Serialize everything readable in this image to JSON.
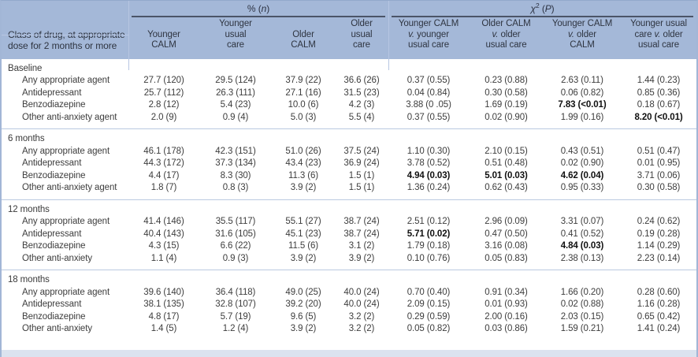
{
  "table": {
    "stub_header": "Class of drug, at appropriate\ndose for 2 months or more",
    "group1": {
      "pre": "% (",
      "var": "n",
      "post": ")"
    },
    "group2": {
      "pre": "χ",
      "sup": "2",
      "mid": " (",
      "var": "P",
      "post": ")"
    },
    "columns": [
      "Younger\nCALM",
      "Younger\nusual\ncare",
      "Older\nCALM",
      "Older\nusual\ncare",
      "Younger CALM\nv. younger\nusual care",
      "Older CALM\nv. older\nusual care",
      "Younger CALM\nv. older\nCALM",
      "Younger usual\ncare v. older\nusual care"
    ],
    "bold_convention": "values wrapped in ** are shown bold (statistically significant)",
    "sections": [
      {
        "label": "Baseline",
        "rows": [
          {
            "drug": "Any appropriate agent",
            "values": [
              "27.7 (120)",
              "29.5 (124)",
              "37.9 (22)",
              "36.6 (26)",
              "0.37 (0.55)",
              "0.23 (0.88)",
              "2.63 (0.11)",
              "1.44 (0.23)"
            ]
          },
          {
            "drug": "Antidepressant",
            "values": [
              "25.7 (112)",
              "26.3 (111)",
              "27.1 (16)",
              "31.5 (23)",
              "0.04 (0.84)",
              "0.30 (0.58)",
              "0.06 (0.82)",
              "0.85 (0.36)"
            ]
          },
          {
            "drug": "Benzodiazepine",
            "values": [
              "2.8 (12)",
              "5.4 (23)",
              "10.0 (6)",
              "4.2 (3)",
              "3.88 (0 .05)",
              "1.69 (0.19)",
              "**7.83 (<0.01)**",
              "0.18 (0.67)"
            ]
          },
          {
            "drug": "Other anti-anxiety agent",
            "values": [
              "2.0 (9)",
              "0.9 (4)",
              "5.0 (3)",
              "5.5 (4)",
              "0.37 (0.55)",
              "0.02 (0.90)",
              "1.99 (0.16)",
              "**8.20 (<0.01)**"
            ]
          }
        ]
      },
      {
        "label": "6 months",
        "rows": [
          {
            "drug": "Any appropriate agent",
            "values": [
              "46.1 (178)",
              "42.3 (151)",
              "51.0 (26)",
              "37.5 (24)",
              "1.10 (0.30)",
              "2.10 (0.15)",
              "0.43 (0.51)",
              "0.51 (0.47)"
            ]
          },
          {
            "drug": "Antidepressant",
            "values": [
              "44.3 (172)",
              "37.3 (134)",
              "43.4 (23)",
              "36.9 (24)",
              "3.78 (0.52)",
              "0.51 (0.48)",
              "0.02 (0.90)",
              "0.01 (0.95)"
            ]
          },
          {
            "drug": "Benzodiazepine",
            "values": [
              "4.4 (17)",
              "8.3 (30)",
              "11.3 (6)",
              "1.5 (1)",
              "**4.94 (0.03)**",
              "**5.01 (0.03)**",
              "**4.62 (0.04)**",
              "3.71 (0.06)"
            ]
          },
          {
            "drug": "Other anti-anxiety agent",
            "values": [
              "1.8 (7)",
              "0.8 (3)",
              "3.9 (2)",
              "1.5 (1)",
              "1.36 (0.24)",
              "0.62 (0.43)",
              "0.95 (0.33)",
              "0.30 (0.58)"
            ]
          }
        ]
      },
      {
        "label": "12 months",
        "rows": [
          {
            "drug": "Any appropriate agent",
            "values": [
              "41.4 (146)",
              "35.5 (117)",
              "55.1 (27)",
              "38.7 (24)",
              "2.51 (0.12)",
              "2.96 (0.09)",
              "3.31 (0.07)",
              "0.24 (0.62)"
            ]
          },
          {
            "drug": "Antidepressant",
            "values": [
              "40.4 (143)",
              "31.6 (105)",
              "45.1 (23)",
              "38.7 (24)",
              "**5.71 (0.02)**",
              "0.47 (0.50)",
              "0.41 (0.52)",
              "0.19 (0.28)"
            ]
          },
          {
            "drug": "Benzodiazepine",
            "values": [
              "4.3 (15)",
              "6.6 (22)",
              "11.5 (6)",
              "3.1 (2)",
              "1.79 (0.18)",
              "3.16 (0.08)",
              "**4.84 (0.03)**",
              "1.14 (0.29)"
            ]
          },
          {
            "drug": "Other anti-anxiety",
            "values": [
              "1.1 (4)",
              "0.9 (3)",
              "3.9 (2)",
              "3.9 (2)",
              "0.10 (0.76)",
              "0.05 (0.83)",
              "2.38 (0.13)",
              "2.23 (0.14)"
            ]
          }
        ]
      },
      {
        "label": "18 months",
        "rows": [
          {
            "drug": "Any appropriate agent",
            "values": [
              "39.6 (140)",
              "36.4 (118)",
              "49.0 (25)",
              "40.0 (24)",
              "0.70 (0.40)",
              "0.91 (0.34)",
              "1.66 (0.20)",
              "0.28 (0.60)"
            ]
          },
          {
            "drug": "Antidepressant",
            "values": [
              "38.1 (135)",
              "32.8 (107)",
              "39.2 (20)",
              "40.0 (24)",
              "2.09 (0.15)",
              "0.01 (0.93)",
              "0.02 (0.88)",
              "1.16 (0.28)"
            ]
          },
          {
            "drug": "Benzodiazepine",
            "values": [
              "4.8 (17)",
              "5.7 (19)",
              "9.6 (5)",
              "3.2 (2)",
              "0.29 (0.59)",
              "2.00 (0.16)",
              "2.03 (0.15)",
              "0.65 (0.42)"
            ]
          },
          {
            "drug": "Other anti-anxiety",
            "values": [
              "1.4 (5)",
              "1.2 (4)",
              "3.9 (2)",
              "3.2 (2)",
              "0.05 (0.82)",
              "0.03 (0.86)",
              "1.59 (0.21)",
              "1.41 (0.24)"
            ]
          }
        ]
      }
    ],
    "colors": {
      "header_bg": "#a4b8d8",
      "group_rule": "#4b5468",
      "section_separator": "#bac9e1",
      "footer_band": "#dbe3ef",
      "body_text": "#3d3d3d",
      "significant_text": "#101010"
    }
  }
}
